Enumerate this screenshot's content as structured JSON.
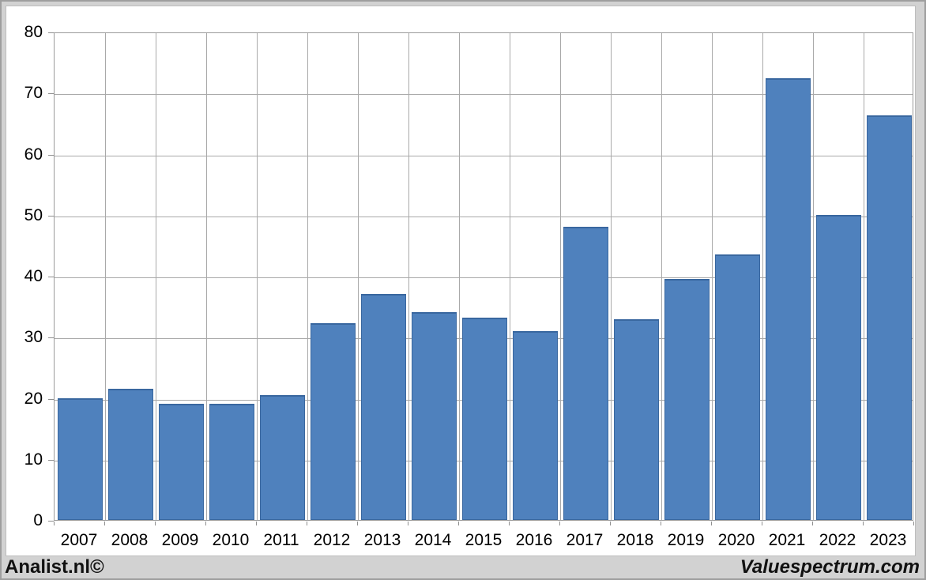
{
  "chart_data": {
    "type": "bar",
    "title": "",
    "xlabel": "",
    "ylabel": "",
    "categories": [
      "2007",
      "2008",
      "2009",
      "2010",
      "2011",
      "2012",
      "2013",
      "2014",
      "2015",
      "2016",
      "2017",
      "2018",
      "2019",
      "2020",
      "2021",
      "2022",
      "2023"
    ],
    "values": [
      20,
      21.5,
      19,
      19,
      20.5,
      32.2,
      37,
      34.1,
      33.2,
      31,
      48,
      32.9,
      39.5,
      43.5,
      72.4,
      50,
      66.3
    ],
    "ylim": [
      0,
      80
    ],
    "yticks": [
      0,
      10,
      20,
      30,
      40,
      50,
      60,
      70,
      80
    ],
    "grid": "both",
    "legend": "none",
    "bar_color": "#4f81bd",
    "bar_border_color": "#39679f",
    "gridline_color": "#a9a9a9",
    "axis_color": "#9a9a9a",
    "plot_background": "#ffffff",
    "page_background": "#d2d2d2"
  },
  "footer": {
    "left_credit": "Analist.nl©",
    "right_credit": "Valuespectrum.com"
  }
}
